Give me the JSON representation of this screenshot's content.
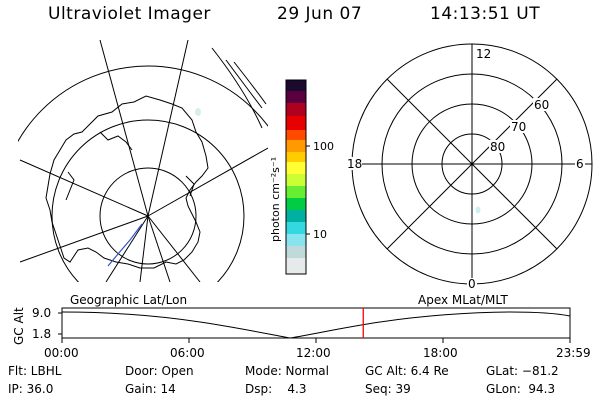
{
  "header": {
    "instrument": "Ultraviolet Imager",
    "date": "29 Jun 07",
    "time": "14:13:51 UT"
  },
  "colorbar": {
    "unit_label": "photon cm⁻²s⁻¹",
    "ticks": [
      "100",
      "10"
    ]
  },
  "polar_plot": {
    "mlt_labels": {
      "top": "12",
      "left": "18",
      "right": "6",
      "bottom": "0"
    },
    "lat_labels": [
      "60",
      "70",
      "80"
    ]
  },
  "timeline": {
    "left_title": "Geographic Lat/Lon",
    "right_title": "Apex MLat/MLT",
    "axis_label": "GC Alt",
    "y_ticks": [
      "9.0",
      "1.8"
    ],
    "x_ticks": [
      "00:00",
      "06:00",
      "12:00",
      "18:00",
      "23:59"
    ],
    "current_time_fraction": 0.593
  },
  "info": {
    "filter": "Flt: LBHL",
    "door": "Door: Open",
    "mode": "Mode: Normal",
    "gc_alt": "GC Alt: 6.4 Re",
    "glat": "GLat: −81.2",
    "ip": "IP: 36.0",
    "gain": "Gain: 14",
    "dsp": "Dsp:    4.3",
    "seq": "Seq: 39",
    "glon": "GLon:  94.3"
  },
  "colors": {
    "marker": "#ff0000",
    "lines": "#000000"
  }
}
